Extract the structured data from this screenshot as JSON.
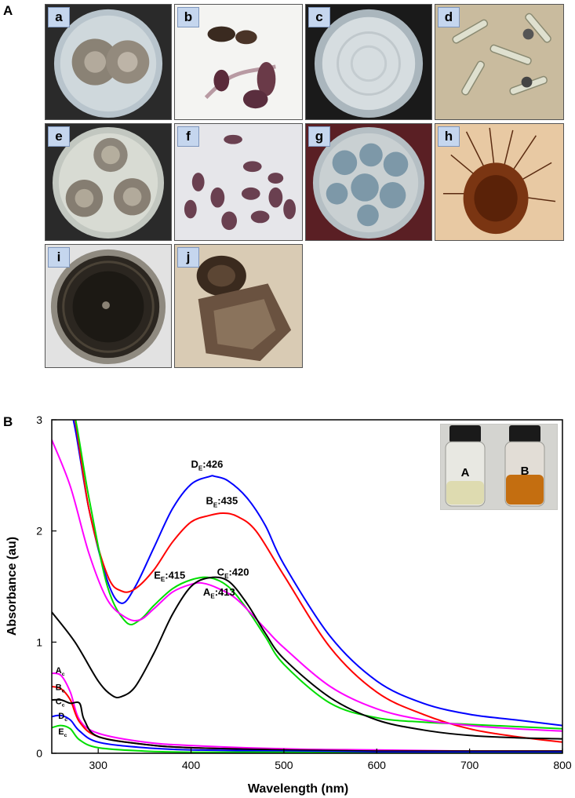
{
  "figure": {
    "panel_a_label": "A",
    "panel_b_label": "B",
    "subpanels": [
      "a",
      "b",
      "c",
      "d",
      "e",
      "f",
      "g",
      "h",
      "i",
      "j"
    ],
    "inset": {
      "vial_a": "A",
      "vial_b": "B"
    },
    "colors": {
      "panel_tag_bg": "#c5d6ee"
    }
  },
  "chart_data": {
    "type": "line",
    "xlabel": "Wavelength (nm)",
    "ylabel": "Absorbance (au)",
    "xlim": [
      250,
      800
    ],
    "ylim": [
      0,
      3
    ],
    "xticks": [
      300,
      400,
      500,
      600,
      700,
      800
    ],
    "yticks": [
      0,
      1,
      2,
      3
    ],
    "grid": false,
    "series": [
      {
        "name": "D",
        "color": "#0000ff",
        "x": [
          250,
          270,
          290,
          310,
          325,
          340,
          360,
          380,
          400,
          420,
          426,
          440,
          460,
          480,
          500,
          550,
          600,
          650,
          700,
          750,
          800
        ],
        "y": [
          3.2,
          3.1,
          2.2,
          1.55,
          1.35,
          1.5,
          1.85,
          2.2,
          2.42,
          2.49,
          2.49,
          2.45,
          2.3,
          2.05,
          1.7,
          1.05,
          0.65,
          0.45,
          0.35,
          0.3,
          0.25
        ]
      },
      {
        "name": "B",
        "color": "#ff0000",
        "x": [
          250,
          270,
          290,
          310,
          325,
          340,
          360,
          380,
          400,
          420,
          435,
          450,
          470,
          500,
          550,
          600,
          650,
          700,
          750,
          800
        ],
        "y": [
          3.3,
          3.2,
          2.2,
          1.6,
          1.46,
          1.48,
          1.65,
          1.9,
          2.08,
          2.14,
          2.16,
          2.13,
          2.0,
          1.6,
          0.95,
          0.55,
          0.35,
          0.22,
          0.15,
          0.1
        ]
      },
      {
        "name": "C",
        "color": "#00dd00",
        "x": [
          250,
          270,
          290,
          310,
          330,
          345,
          360,
          380,
          400,
          420,
          440,
          460,
          480,
          500,
          550,
          600,
          650,
          700,
          750,
          800
        ],
        "y": [
          3.3,
          3.2,
          2.3,
          1.5,
          1.18,
          1.2,
          1.33,
          1.48,
          1.56,
          1.58,
          1.5,
          1.3,
          1.05,
          0.8,
          0.45,
          0.32,
          0.28,
          0.26,
          0.24,
          0.22
        ]
      },
      {
        "name": "A",
        "color": "#ff00ff",
        "x": [
          250,
          270,
          290,
          310,
          330,
          345,
          360,
          380,
          400,
          413,
          430,
          450,
          480,
          500,
          550,
          600,
          650,
          700,
          750,
          800
        ],
        "y": [
          2.82,
          2.4,
          1.8,
          1.38,
          1.22,
          1.2,
          1.3,
          1.45,
          1.52,
          1.53,
          1.48,
          1.38,
          1.12,
          0.95,
          0.6,
          0.4,
          0.3,
          0.25,
          0.22,
          0.2
        ]
      },
      {
        "name": "E",
        "color": "#000000",
        "x": [
          250,
          275,
          300,
          315,
          325,
          340,
          360,
          380,
          400,
          420,
          440,
          460,
          480,
          500,
          550,
          600,
          650,
          700,
          750,
          800
        ],
        "y": [
          1.27,
          1.0,
          0.65,
          0.52,
          0.51,
          0.6,
          0.9,
          1.25,
          1.5,
          1.58,
          1.55,
          1.35,
          1.08,
          0.85,
          0.5,
          0.3,
          0.21,
          0.16,
          0.14,
          0.13
        ]
      },
      {
        "color": "#ff00ff",
        "x": [
          250,
          260,
          270,
          280,
          300,
          350,
          400,
          500,
          600,
          700,
          800
        ],
        "y": [
          0.72,
          0.7,
          0.55,
          0.3,
          0.18,
          0.1,
          0.07,
          0.04,
          0.03,
          0.02,
          0.02
        ]
      },
      {
        "color": "#ff0000",
        "x": [
          250,
          260,
          270,
          280,
          300,
          350,
          400,
          500,
          600,
          700,
          800
        ],
        "y": [
          0.6,
          0.58,
          0.48,
          0.28,
          0.15,
          0.08,
          0.05,
          0.03,
          0.02,
          0.02,
          0.02
        ]
      },
      {
        "color": "#000000",
        "x": [
          250,
          260,
          270,
          280,
          285,
          300,
          350,
          400,
          500,
          600,
          700,
          800
        ],
        "y": [
          0.48,
          0.48,
          0.45,
          0.45,
          0.3,
          0.15,
          0.08,
          0.05,
          0.03,
          0.02,
          0.02,
          0.02
        ]
      },
      {
        "color": "#0000ff",
        "x": [
          250,
          260,
          270,
          280,
          300,
          350,
          400,
          500,
          600,
          700,
          800
        ],
        "y": [
          0.33,
          0.34,
          0.3,
          0.2,
          0.1,
          0.05,
          0.03,
          0.02,
          0.01,
          0.01,
          0.01
        ]
      },
      {
        "color": "#00dd00",
        "x": [
          250,
          260,
          270,
          280,
          300,
          350,
          400,
          500,
          600,
          700,
          800
        ],
        "y": [
          0.23,
          0.25,
          0.22,
          0.12,
          0.05,
          0.02,
          0.01,
          0.01,
          0.0,
          0.0,
          0.0
        ]
      }
    ],
    "peak_labels": [
      {
        "main": "D",
        "sub": "E",
        "value": ":426",
        "x": 400,
        "y": 2.57
      },
      {
        "main": "B",
        "sub": "E",
        "value": ":435",
        "x": 416,
        "y": 2.24
      },
      {
        "main": "E",
        "sub": "E",
        "value": ":415",
        "x": 360,
        "y": 1.57
      },
      {
        "main": "C",
        "sub": "E",
        "value": ":420",
        "x": 428,
        "y": 1.6
      },
      {
        "main": "A",
        "sub": "E",
        "value": ":413",
        "x": 413,
        "y": 1.42
      }
    ],
    "control_labels": [
      {
        "main": "A",
        "sub": "c",
        "x": 254,
        "y": 0.72
      },
      {
        "main": "B",
        "sub": "c",
        "x": 254,
        "y": 0.57
      },
      {
        "main": "C",
        "sub": "c",
        "x": 254,
        "y": 0.44
      },
      {
        "main": "D",
        "sub": "c",
        "x": 257,
        "y": 0.31
      },
      {
        "main": "E",
        "sub": "c",
        "x": 257,
        "y": 0.17
      }
    ]
  }
}
